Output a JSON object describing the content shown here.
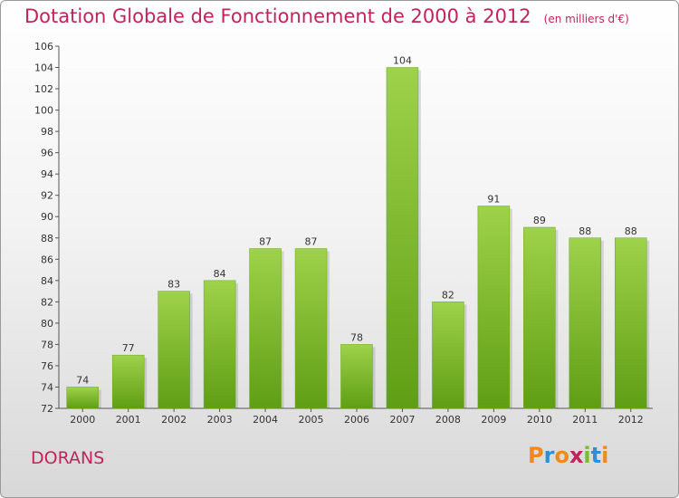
{
  "chart_data": {
    "type": "bar",
    "title": "Dotation Globale de Fonctionnement de 2000 à 2012",
    "subtitle": "(en milliers d'€)",
    "categories": [
      "2000",
      "2001",
      "2002",
      "2003",
      "2004",
      "2005",
      "2006",
      "2007",
      "2008",
      "2009",
      "2010",
      "2011",
      "2012"
    ],
    "values": [
      74,
      77,
      83,
      84,
      87,
      87,
      78,
      104,
      82,
      91,
      89,
      88,
      88
    ],
    "ylim": [
      72,
      106
    ],
    "yticks": [
      72,
      74,
      76,
      78,
      80,
      82,
      84,
      86,
      88,
      90,
      92,
      94,
      96,
      98,
      100,
      102,
      104,
      106
    ],
    "grid": false,
    "bar_color": "#7dbb2e"
  },
  "commune": "DORANS",
  "logo": {
    "text": "Proxiti",
    "letters": [
      "P",
      "r",
      "o",
      "x",
      "i",
      "t",
      "i"
    ],
    "colors": [
      "#f08a1c",
      "#2f8fd6",
      "#f08a1c",
      "#c0245b",
      "#7dbb2e",
      "#2f8fd6",
      "#f08a1c"
    ]
  }
}
